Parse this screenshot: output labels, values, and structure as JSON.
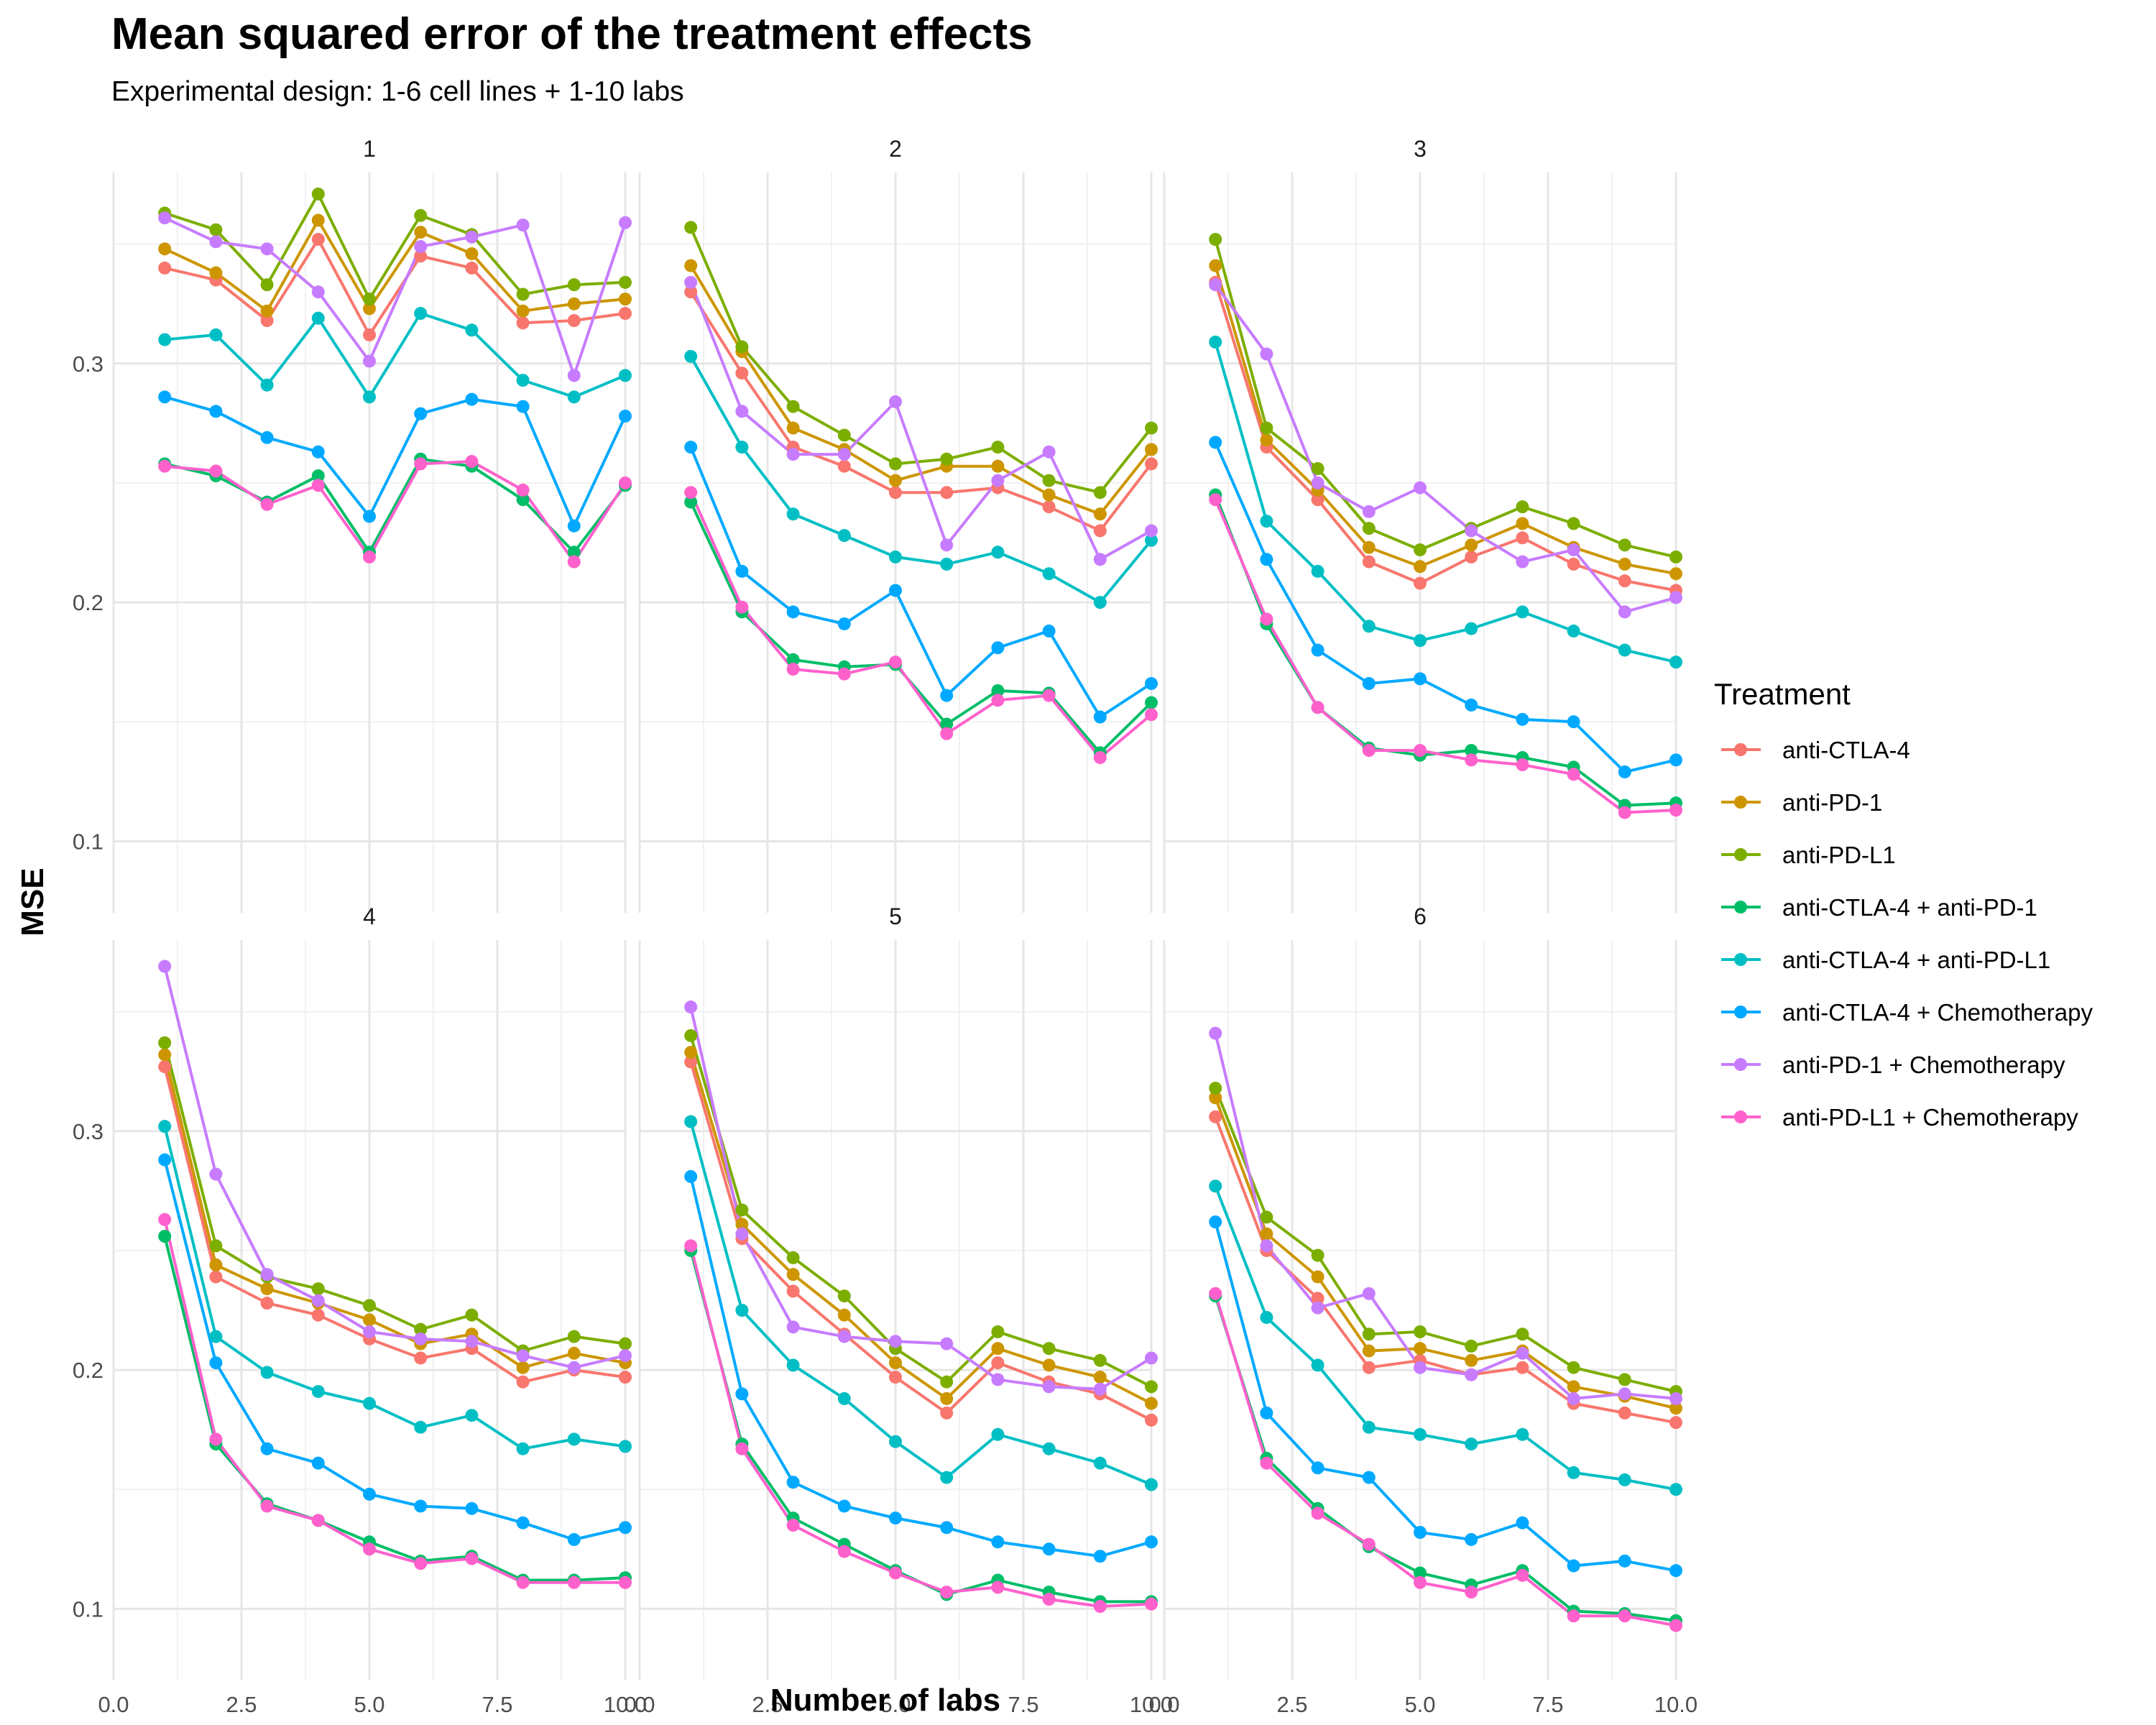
{
  "chart_data": {
    "type": "line",
    "title": "Mean squared error of the treatment effects",
    "subtitle": "Experimental design: 1-6 cell lines + 1-10 labs",
    "xlabel": "Number of labs",
    "ylabel": "MSE",
    "xlim": [
      0,
      10
    ],
    "ylim": [
      0.07,
      0.38
    ],
    "x_ticks": [
      "0.0",
      "2.5",
      "5.0",
      "7.5",
      "10.0"
    ],
    "y_ticks": [
      "0.1",
      "0.2",
      "0.3"
    ],
    "grid": true,
    "legend": {
      "title": "Treatment",
      "position": "right"
    },
    "x": [
      1,
      2,
      3,
      4,
      5,
      6,
      7,
      8,
      9,
      10
    ],
    "series_meta": [
      {
        "name": "anti-CTLA-4",
        "color": "#F8766D"
      },
      {
        "name": "anti-PD-1",
        "color": "#CD9600"
      },
      {
        "name": "anti-PD-L1",
        "color": "#7CAE00"
      },
      {
        "name": "anti-CTLA-4 + anti-PD-1",
        "color": "#00BE67"
      },
      {
        "name": "anti-CTLA-4 + anti-PD-L1",
        "color": "#00BFC4"
      },
      {
        "name": "anti-CTLA-4 + Chemotherapy",
        "color": "#00A9FF"
      },
      {
        "name": "anti-PD-1 + Chemotherapy",
        "color": "#C77CFF"
      },
      {
        "name": "anti-PD-L1 + Chemotherapy",
        "color": "#FF61CC"
      }
    ],
    "panels": [
      {
        "label": "1",
        "series": [
          {
            "name": "anti-CTLA-4",
            "values": [
              0.34,
              0.335,
              0.318,
              0.352,
              0.312,
              0.345,
              0.34,
              0.317,
              0.318,
              0.321
            ]
          },
          {
            "name": "anti-PD-1",
            "values": [
              0.348,
              0.338,
              0.322,
              0.36,
              0.323,
              0.355,
              0.346,
              0.322,
              0.325,
              0.327
            ]
          },
          {
            "name": "anti-PD-L1",
            "values": [
              0.363,
              0.356,
              0.333,
              0.371,
              0.327,
              0.362,
              0.354,
              0.329,
              0.333,
              0.334
            ]
          },
          {
            "name": "anti-CTLA-4 + anti-PD-1",
            "values": [
              0.258,
              0.253,
              0.242,
              0.253,
              0.221,
              0.26,
              0.257,
              0.243,
              0.221,
              0.249
            ]
          },
          {
            "name": "anti-CTLA-4 + anti-PD-L1",
            "values": [
              0.31,
              0.312,
              0.291,
              0.319,
              0.286,
              0.321,
              0.314,
              0.293,
              0.286,
              0.295
            ]
          },
          {
            "name": "anti-CTLA-4 + Chemotherapy",
            "values": [
              0.286,
              0.28,
              0.269,
              0.263,
              0.236,
              0.279,
              0.285,
              0.282,
              0.232,
              0.278
            ]
          },
          {
            "name": "anti-PD-1 + Chemotherapy",
            "values": [
              0.361,
              0.351,
              0.348,
              0.33,
              0.301,
              0.349,
              0.353,
              0.358,
              0.295,
              0.359
            ]
          },
          {
            "name": "anti-PD-L1 + Chemotherapy",
            "values": [
              0.257,
              0.255,
              0.241,
              0.249,
              0.219,
              0.258,
              0.259,
              0.247,
              0.217,
              0.25
            ]
          }
        ]
      },
      {
        "label": "2",
        "series": [
          {
            "name": "anti-CTLA-4",
            "values": [
              0.33,
              0.296,
              0.265,
              0.257,
              0.246,
              0.246,
              0.248,
              0.24,
              0.23,
              0.258
            ]
          },
          {
            "name": "anti-PD-1",
            "values": [
              0.341,
              0.305,
              0.273,
              0.264,
              0.251,
              0.257,
              0.257,
              0.245,
              0.237,
              0.264
            ]
          },
          {
            "name": "anti-PD-L1",
            "values": [
              0.357,
              0.307,
              0.282,
              0.27,
              0.258,
              0.26,
              0.265,
              0.251,
              0.246,
              0.273
            ]
          },
          {
            "name": "anti-CTLA-4 + anti-PD-1",
            "values": [
              0.242,
              0.196,
              0.176,
              0.173,
              0.174,
              0.149,
              0.163,
              0.162,
              0.137,
              0.158
            ]
          },
          {
            "name": "anti-CTLA-4 + anti-PD-L1",
            "values": [
              0.303,
              0.265,
              0.237,
              0.228,
              0.219,
              0.216,
              0.221,
              0.212,
              0.2,
              0.226
            ]
          },
          {
            "name": "anti-CTLA-4 + Chemotherapy",
            "values": [
              0.265,
              0.213,
              0.196,
              0.191,
              0.205,
              0.161,
              0.181,
              0.188,
              0.152,
              0.166
            ]
          },
          {
            "name": "anti-PD-1 + Chemotherapy",
            "values": [
              0.334,
              0.28,
              0.262,
              0.262,
              0.284,
              0.224,
              0.251,
              0.263,
              0.218,
              0.23
            ]
          },
          {
            "name": "anti-PD-L1 + Chemotherapy",
            "values": [
              0.246,
              0.198,
              0.172,
              0.17,
              0.175,
              0.145,
              0.159,
              0.161,
              0.135,
              0.153
            ]
          }
        ]
      },
      {
        "label": "3",
        "series": [
          {
            "name": "anti-CTLA-4",
            "values": [
              0.334,
              0.265,
              0.243,
              0.217,
              0.208,
              0.219,
              0.227,
              0.216,
              0.209,
              0.205
            ]
          },
          {
            "name": "anti-PD-1",
            "values": [
              0.341,
              0.268,
              0.247,
              0.223,
              0.215,
              0.224,
              0.233,
              0.223,
              0.216,
              0.212
            ]
          },
          {
            "name": "anti-PD-L1",
            "values": [
              0.352,
              0.273,
              0.256,
              0.231,
              0.222,
              0.231,
              0.24,
              0.233,
              0.224,
              0.219
            ]
          },
          {
            "name": "anti-CTLA-4 + anti-PD-1",
            "values": [
              0.245,
              0.191,
              0.156,
              0.139,
              0.136,
              0.138,
              0.135,
              0.131,
              0.115,
              0.116
            ]
          },
          {
            "name": "anti-CTLA-4 + anti-PD-L1",
            "values": [
              0.309,
              0.234,
              0.213,
              0.19,
              0.184,
              0.189,
              0.196,
              0.188,
              0.18,
              0.175
            ]
          },
          {
            "name": "anti-CTLA-4 + Chemotherapy",
            "values": [
              0.267,
              0.218,
              0.18,
              0.166,
              0.168,
              0.157,
              0.151,
              0.15,
              0.129,
              0.134
            ]
          },
          {
            "name": "anti-PD-1 + Chemotherapy",
            "values": [
              0.333,
              0.304,
              0.25,
              0.238,
              0.248,
              0.23,
              0.217,
              0.222,
              0.196,
              0.202
            ]
          },
          {
            "name": "anti-PD-L1 + Chemotherapy",
            "values": [
              0.243,
              0.193,
              0.156,
              0.138,
              0.138,
              0.134,
              0.132,
              0.128,
              0.112,
              0.113
            ]
          }
        ]
      },
      {
        "label": "4",
        "series": [
          {
            "name": "anti-CTLA-4",
            "values": [
              0.327,
              0.239,
              0.228,
              0.223,
              0.213,
              0.205,
              0.209,
              0.195,
              0.2,
              0.197
            ]
          },
          {
            "name": "anti-PD-1",
            "values": [
              0.332,
              0.244,
              0.234,
              0.228,
              0.221,
              0.211,
              0.215,
              0.201,
              0.207,
              0.203
            ]
          },
          {
            "name": "anti-PD-L1",
            "values": [
              0.337,
              0.252,
              0.239,
              0.234,
              0.227,
              0.217,
              0.223,
              0.208,
              0.214,
              0.211
            ]
          },
          {
            "name": "anti-CTLA-4 + anti-PD-1",
            "values": [
              0.256,
              0.169,
              0.144,
              0.137,
              0.128,
              0.12,
              0.122,
              0.112,
              0.112,
              0.113
            ]
          },
          {
            "name": "anti-CTLA-4 + anti-PD-L1",
            "values": [
              0.302,
              0.214,
              0.199,
              0.191,
              0.186,
              0.176,
              0.181,
              0.167,
              0.171,
              0.168
            ]
          },
          {
            "name": "anti-CTLA-4 + Chemotherapy",
            "values": [
              0.288,
              0.203,
              0.167,
              0.161,
              0.148,
              0.143,
              0.142,
              0.136,
              0.129,
              0.134
            ]
          },
          {
            "name": "anti-PD-1 + Chemotherapy",
            "values": [
              0.369,
              0.282,
              0.24,
              0.229,
              0.216,
              0.213,
              0.212,
              0.206,
              0.201,
              0.206
            ]
          },
          {
            "name": "anti-PD-L1 + Chemotherapy",
            "values": [
              0.263,
              0.171,
              0.143,
              0.137,
              0.125,
              0.119,
              0.121,
              0.111,
              0.111,
              0.111
            ]
          }
        ]
      },
      {
        "label": "5",
        "series": [
          {
            "name": "anti-CTLA-4",
            "values": [
              0.329,
              0.255,
              0.233,
              0.215,
              0.197,
              0.182,
              0.203,
              0.195,
              0.19,
              0.179
            ]
          },
          {
            "name": "anti-PD-1",
            "values": [
              0.333,
              0.261,
              0.24,
              0.223,
              0.203,
              0.188,
              0.209,
              0.202,
              0.197,
              0.186
            ]
          },
          {
            "name": "anti-PD-L1",
            "values": [
              0.34,
              0.267,
              0.247,
              0.231,
              0.209,
              0.195,
              0.216,
              0.209,
              0.204,
              0.193
            ]
          },
          {
            "name": "anti-CTLA-4 + anti-PD-1",
            "values": [
              0.25,
              0.169,
              0.138,
              0.127,
              0.116,
              0.106,
              0.112,
              0.107,
              0.103,
              0.103
            ]
          },
          {
            "name": "anti-CTLA-4 + anti-PD-L1",
            "values": [
              0.304,
              0.225,
              0.202,
              0.188,
              0.17,
              0.155,
              0.173,
              0.167,
              0.161,
              0.152
            ]
          },
          {
            "name": "anti-CTLA-4 + Chemotherapy",
            "values": [
              0.281,
              0.19,
              0.153,
              0.143,
              0.138,
              0.134,
              0.128,
              0.125,
              0.122,
              0.128
            ]
          },
          {
            "name": "anti-PD-1 + Chemotherapy",
            "values": [
              0.352,
              0.257,
              0.218,
              0.214,
              0.212,
              0.211,
              0.196,
              0.193,
              0.192,
              0.205
            ]
          },
          {
            "name": "anti-PD-L1 + Chemotherapy",
            "values": [
              0.252,
              0.167,
              0.135,
              0.124,
              0.115,
              0.107,
              0.109,
              0.104,
              0.101,
              0.102
            ]
          }
        ]
      },
      {
        "label": "6",
        "series": [
          {
            "name": "anti-CTLA-4",
            "values": [
              0.306,
              0.25,
              0.23,
              0.201,
              0.204,
              0.198,
              0.201,
              0.186,
              0.182,
              0.178
            ]
          },
          {
            "name": "anti-PD-1",
            "values": [
              0.314,
              0.257,
              0.239,
              0.208,
              0.209,
              0.204,
              0.208,
              0.193,
              0.189,
              0.184
            ]
          },
          {
            "name": "anti-PD-L1",
            "values": [
              0.318,
              0.264,
              0.248,
              0.215,
              0.216,
              0.21,
              0.215,
              0.201,
              0.196,
              0.191
            ]
          },
          {
            "name": "anti-CTLA-4 + anti-PD-1",
            "values": [
              0.231,
              0.163,
              0.142,
              0.126,
              0.115,
              0.11,
              0.116,
              0.099,
              0.098,
              0.095
            ]
          },
          {
            "name": "anti-CTLA-4 + anti-PD-L1",
            "values": [
              0.277,
              0.222,
              0.202,
              0.176,
              0.173,
              0.169,
              0.173,
              0.157,
              0.154,
              0.15
            ]
          },
          {
            "name": "anti-CTLA-4 + Chemotherapy",
            "values": [
              0.262,
              0.182,
              0.159,
              0.155,
              0.132,
              0.129,
              0.136,
              0.118,
              0.12,
              0.116
            ]
          },
          {
            "name": "anti-PD-1 + Chemotherapy",
            "values": [
              0.341,
              0.252,
              0.226,
              0.232,
              0.201,
              0.198,
              0.207,
              0.188,
              0.19,
              0.188
            ]
          },
          {
            "name": "anti-PD-L1 + Chemotherapy",
            "values": [
              0.232,
              0.161,
              0.14,
              0.127,
              0.111,
              0.107,
              0.114,
              0.097,
              0.097,
              0.093
            ]
          }
        ]
      }
    ]
  }
}
